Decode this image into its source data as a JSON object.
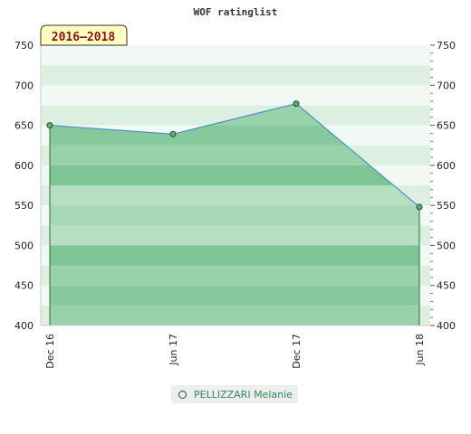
{
  "chart_data": {
    "type": "line",
    "title": "WOF ratinglist",
    "period_label": "2016–2018",
    "categories": [
      "Dec 16",
      "Jun 17",
      "Dec 17",
      "Jun 18"
    ],
    "series": [
      {
        "name": "PELLIZZARI Melanie",
        "values": [
          650,
          639,
          677,
          548
        ]
      }
    ],
    "ylim": [
      400,
      750
    ],
    "yticks": [
      400,
      450,
      500,
      550,
      600,
      650,
      700,
      750
    ],
    "grid": true,
    "legend_position": "bottom",
    "colors": {
      "line": "#4a90c8",
      "fill": "#7cc694",
      "marker": "#5fae78",
      "marker_edge": "#1f4d2d",
      "badge_bg": "#ffffc0"
    }
  }
}
